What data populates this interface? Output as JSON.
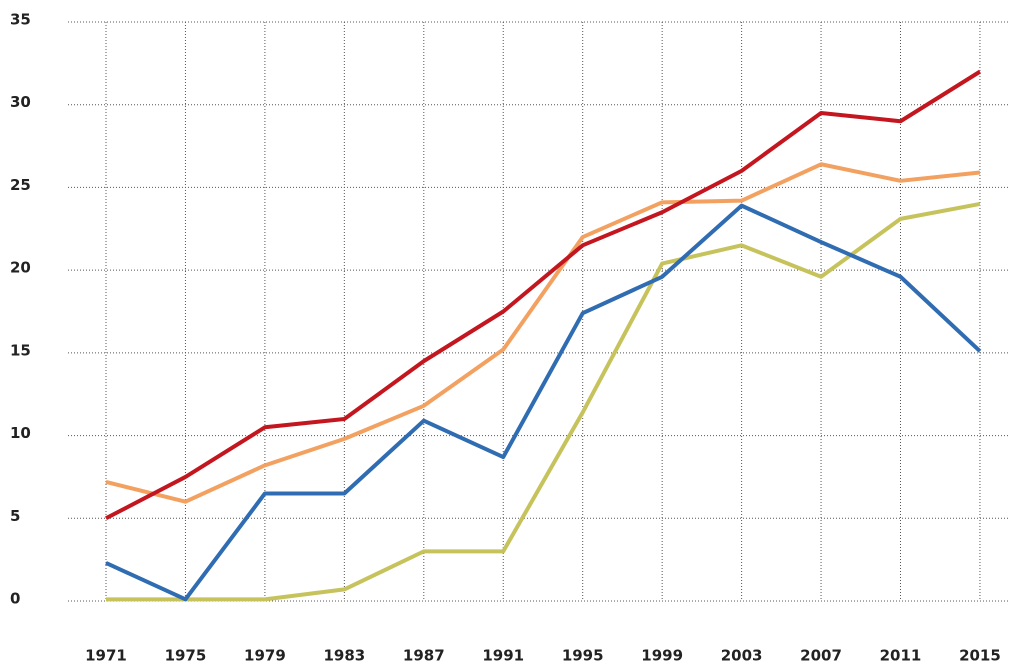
{
  "chart_data": {
    "type": "line",
    "categories": [
      "1971",
      "1975",
      "1979",
      "1983",
      "1987",
      "1991",
      "1995",
      "1999",
      "2003",
      "2007",
      "2011",
      "2015"
    ],
    "series": [
      {
        "color": "#c7c35c",
        "values": [
          0.1,
          0.1,
          0.1,
          0.7,
          3,
          3,
          11.4,
          20.4,
          21.5,
          19.6,
          23.1,
          24
        ]
      },
      {
        "color": "#2f6cb1",
        "values": [
          2.3,
          0.1,
          6.5,
          6.5,
          10.9,
          8.7,
          17.4,
          19.6,
          23.9,
          21.7,
          19.6,
          15.1
        ]
      },
      {
        "color": "#f3a160",
        "values": [
          7.2,
          6,
          8.2,
          9.8,
          11.8,
          15.2,
          22,
          24.1,
          24.2,
          26.4,
          25.4,
          25.9
        ]
      },
      {
        "color": "#c3161f",
        "values": [
          5,
          7.5,
          10.5,
          11,
          14.5,
          17.5,
          21.5,
          23.5,
          26,
          29.5,
          29,
          32
        ]
      }
    ],
    "ylim": [
      0,
      35
    ],
    "yticks": [
      0,
      5,
      10,
      15,
      20,
      25,
      30,
      35
    ],
    "grid": true
  }
}
